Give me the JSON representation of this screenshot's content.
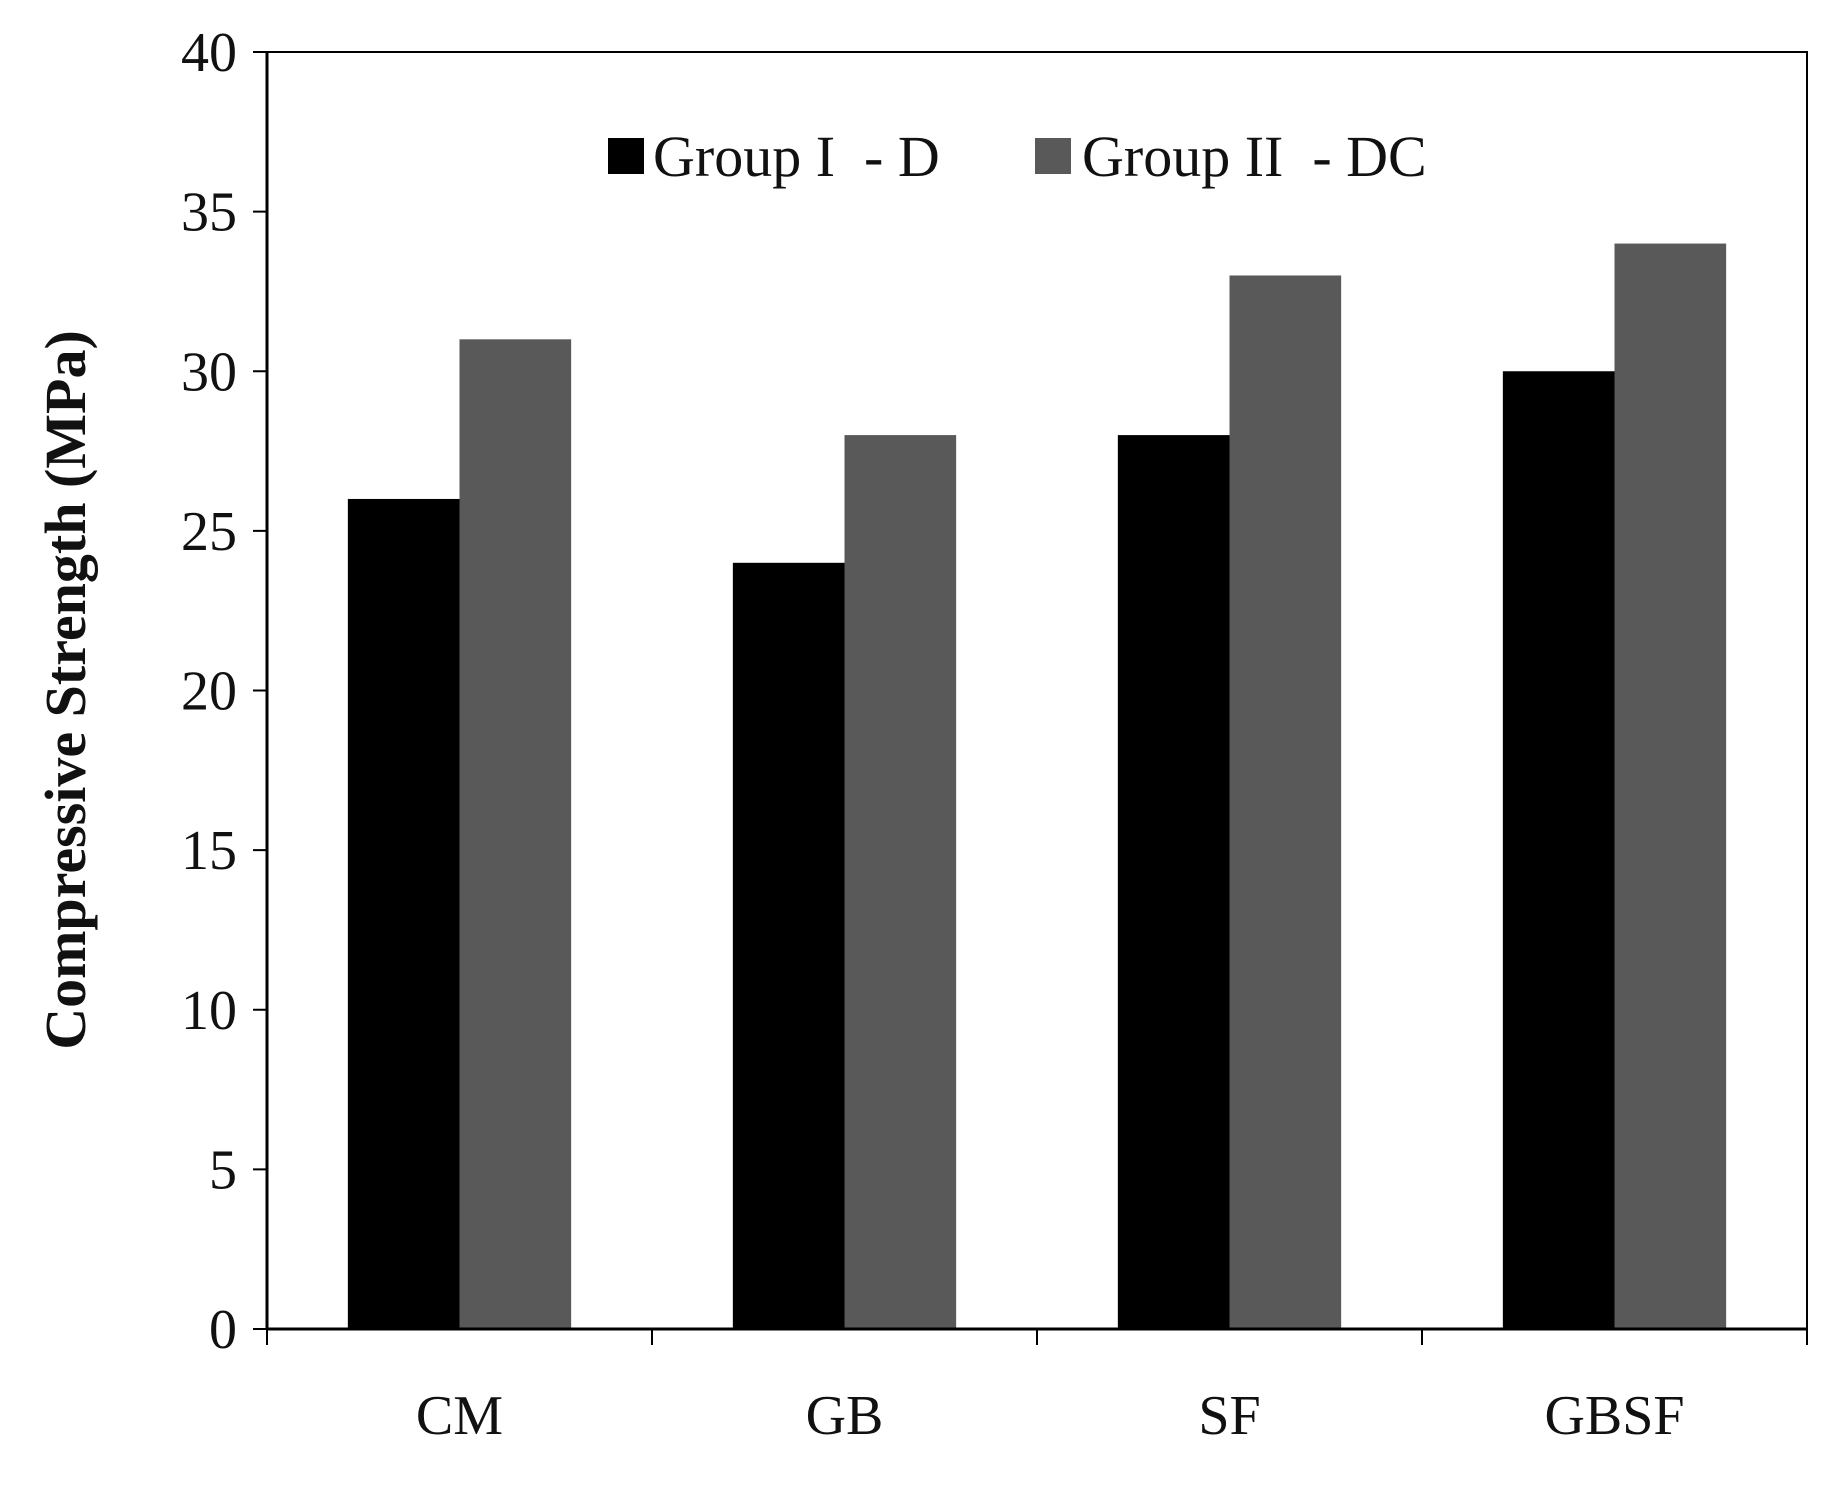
{
  "chart_data": {
    "type": "bar",
    "title": "",
    "xlabel": "",
    "ylabel": "Compressive Strength (MPa)",
    "ylim": [
      0,
      40
    ],
    "yticks": [
      0,
      5,
      10,
      15,
      20,
      25,
      30,
      35,
      40
    ],
    "ytick_labels": [
      "0",
      "5",
      "10",
      "15",
      "20",
      "25",
      "30",
      "35",
      "40"
    ],
    "categories": [
      "CM",
      "GB",
      "SF",
      "GBSF"
    ],
    "series": [
      {
        "name": "Group I  - D",
        "color": "#000000",
        "values": [
          26,
          24,
          28,
          30
        ]
      },
      {
        "name": "Group II  - DC",
        "color": "#595959",
        "values": [
          31,
          28,
          33,
          34
        ]
      }
    ],
    "legend_position": "top-center",
    "grid": false
  }
}
